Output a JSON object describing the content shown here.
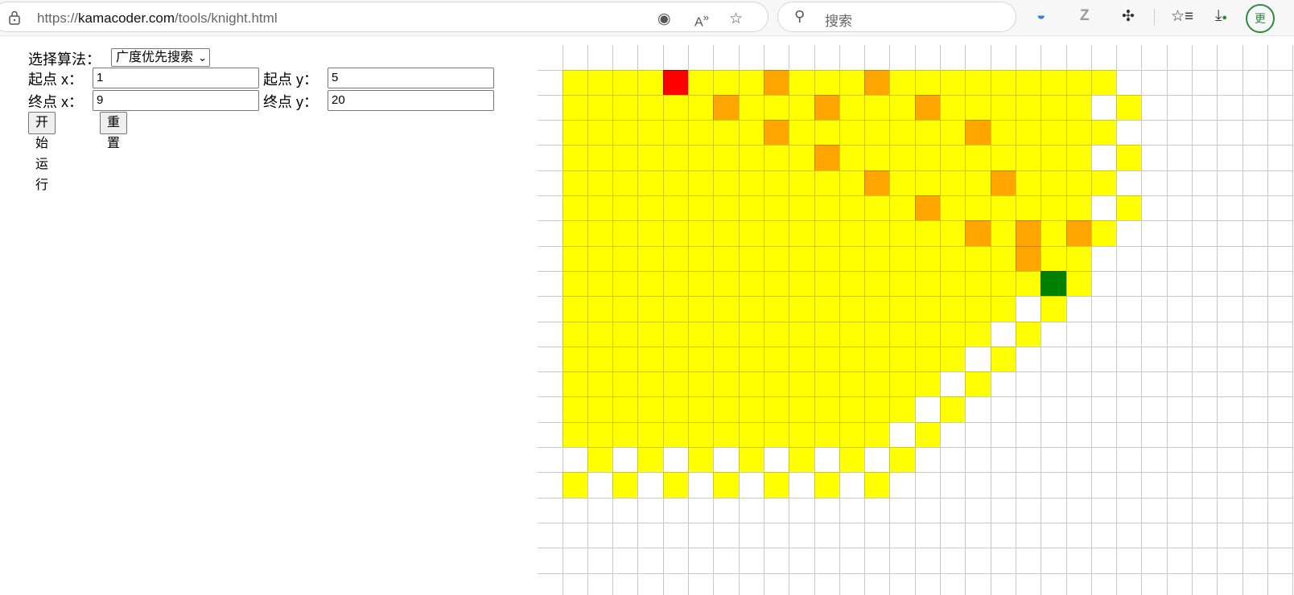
{
  "browser": {
    "url_prefix": "https://",
    "url_domain": "kamacoder.com",
    "url_path": "/tools/knight.html",
    "search_placeholder": "搜索",
    "profile_initial": "更"
  },
  "form": {
    "algorithm_label": "选择算法：",
    "algorithm_selected": "广度优先搜索",
    "start_x_label": "起点 x：",
    "start_x_value": "1",
    "start_y_label": "起点 y：",
    "start_y_value": "5",
    "end_x_label": "终点 x：",
    "end_x_value": "9",
    "end_y_label": "终点 y：",
    "end_y_value": "20",
    "run_button": "开始运行",
    "reset_button": "重置"
  },
  "board": {
    "legend": {
      ".": "empty",
      "Y": "visited",
      "O": "path",
      "S": "start",
      "E": "end"
    },
    "colors": {
      "empty": "#ffffff",
      "visited": "#ffff00",
      "path": "#ffa500",
      "start": "#ff0000",
      "end": "#008000",
      "grid_line": "#c8c8c8"
    },
    "rows": [
      "..............................",
      ".YYYYSYYYOYYYOYYYYYYYYY.......",
      ".YYYYYYOYYYOYYYOYYYYYY.Y......",
      ".YYYYYYYYOYYYYYYYOYYYYY.......",
      ".YYYYYYYYYYOYYYYYYYYYY.Y......",
      ".YYYYYYYYYYYYOYYYYOYYYY.......",
      ".YYYYYYYYYYYYYYOYYYYYY.Y......",
      ".YYYYYYYYYYYYYYYYOYOYOY.......",
      ".YYYYYYYYYYYYYYYYYYOYY........",
      ".YYYYYYYYYYYYYYYYYYYEY........",
      ".YYYYYYYYYYYYYYYYYY.Y.........",
      ".YYYYYYYYYYYYYYYYY.Y..........",
      ".YYYYYYYYYYYYYYYY.Y...........",
      ".YYYYYYYYYYYYYYY.Y............",
      ".YYYYYYYYYYYYYY.Y.............",
      ".YYYYYYYYYYYYY.Y..............",
      "..Y.Y.Y.Y.Y.Y.Y...............",
      ".Y.Y.Y.Y.Y.Y.Y................",
      "..............................",
      "..............................",
      "..............................",
      ".............................."
    ]
  }
}
